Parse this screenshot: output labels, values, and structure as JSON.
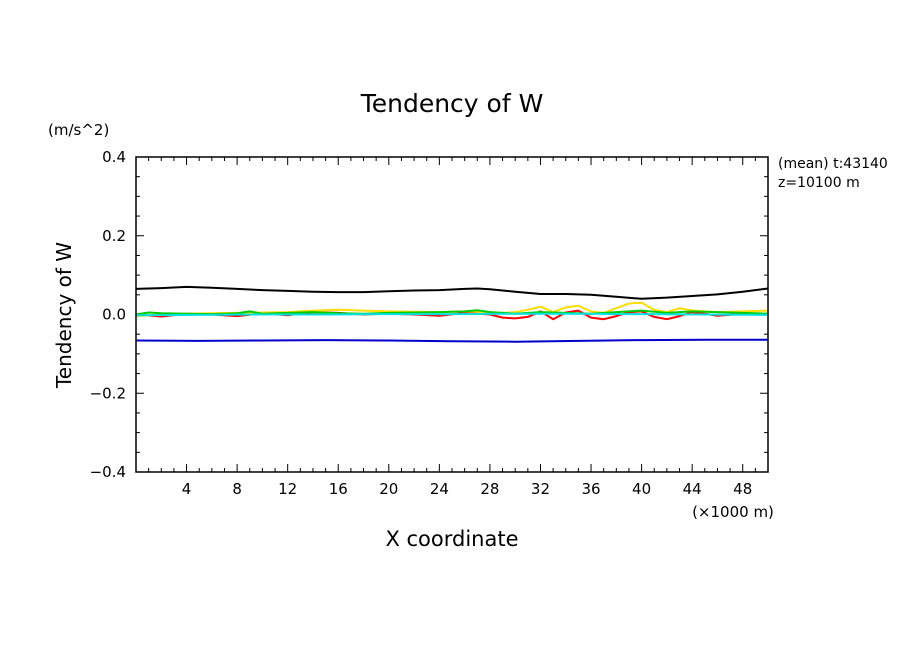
{
  "chart_data": {
    "type": "line",
    "title": "Tendency of W",
    "xlabel": "X coordinate",
    "ylabel": "Tendency of W",
    "x_unit_label": "(×1000 m)",
    "y_unit_label": "(m/s^2)",
    "annotation_lines": [
      "(mean) t:43140",
      "z=10100 m"
    ],
    "xlim": [
      0,
      50
    ],
    "ylim": [
      -0.4,
      0.4
    ],
    "xticks": [
      4,
      8,
      12,
      16,
      20,
      24,
      28,
      32,
      36,
      40,
      44,
      48
    ],
    "xtick_labels": [
      "4",
      "8",
      "12",
      "16",
      "20",
      "24",
      "28",
      "32",
      "36",
      "40",
      "44",
      "48"
    ],
    "yticks": [
      -0.4,
      -0.2,
      0.0,
      0.2,
      0.4
    ],
    "ytick_labels": [
      "−0.4",
      "−0.2",
      "0.0",
      "0.2",
      "0.4"
    ],
    "grid": false,
    "legend": "none",
    "series": [
      {
        "color": "#000000",
        "x": [
          0,
          2,
          4,
          6,
          8,
          10,
          12,
          14,
          16,
          18,
          20,
          22,
          24,
          26,
          27,
          28,
          30,
          32,
          34,
          36,
          38,
          40,
          42,
          44,
          46,
          48,
          50
        ],
        "y": [
          0.065,
          0.067,
          0.07,
          0.068,
          0.065,
          0.062,
          0.06,
          0.058,
          0.057,
          0.057,
          0.059,
          0.061,
          0.062,
          0.065,
          0.066,
          0.064,
          0.058,
          0.052,
          0.052,
          0.05,
          0.045,
          0.04,
          0.043,
          0.047,
          0.051,
          0.058,
          0.066
        ]
      },
      {
        "color": "#0000cc",
        "x": [
          0,
          5,
          10,
          15,
          20,
          25,
          30,
          35,
          40,
          45,
          50
        ],
        "y": [
          -0.066,
          -0.067,
          -0.066,
          -0.065,
          -0.066,
          -0.068,
          -0.069,
          -0.067,
          -0.065,
          -0.064,
          -0.064
        ]
      },
      {
        "color": "#ff0000",
        "x": [
          0,
          2,
          4,
          6,
          8,
          10,
          12,
          14,
          16,
          18,
          20,
          22,
          24,
          26,
          28,
          29,
          30,
          31,
          32,
          33,
          34,
          35,
          36,
          37,
          38,
          39,
          40,
          41,
          42,
          43,
          44,
          45,
          46,
          48,
          50
        ],
        "y": [
          0.0,
          -0.005,
          0.002,
          0.0,
          -0.004,
          0.003,
          -0.002,
          0.006,
          0.004,
          0.0,
          0.002,
          0.0,
          -0.003,
          0.004,
          0.0,
          -0.008,
          -0.01,
          -0.006,
          0.008,
          -0.012,
          0.005,
          0.01,
          -0.008,
          -0.012,
          -0.004,
          0.006,
          0.008,
          -0.006,
          -0.012,
          -0.004,
          0.006,
          0.002,
          -0.003,
          0.002,
          0.0
        ]
      },
      {
        "color": "#ffdd00",
        "x": [
          0,
          2,
          4,
          6,
          8,
          10,
          12,
          14,
          16,
          18,
          20,
          22,
          24,
          26,
          28,
          29,
          30,
          31,
          32,
          33,
          34,
          35,
          36,
          37,
          38,
          39,
          40,
          41,
          42,
          43,
          44,
          46,
          48,
          50
        ],
        "y": [
          -0.004,
          0.0,
          0.002,
          0.003,
          0.004,
          0.005,
          0.006,
          0.01,
          0.012,
          0.01,
          0.008,
          0.007,
          0.006,
          0.008,
          0.006,
          0.004,
          0.006,
          0.012,
          0.02,
          0.006,
          0.018,
          0.022,
          0.008,
          0.004,
          0.016,
          0.028,
          0.03,
          0.012,
          0.006,
          0.016,
          0.01,
          0.006,
          0.008,
          0.01
        ]
      },
      {
        "color": "#00cc00",
        "x": [
          0,
          1,
          2,
          4,
          6,
          8,
          9,
          10,
          12,
          14,
          16,
          18,
          20,
          22,
          24,
          26,
          27,
          28,
          30,
          32,
          34,
          36,
          38,
          40,
          42,
          44,
          46,
          48,
          50
        ],
        "y": [
          0.0,
          0.005,
          0.003,
          0.002,
          0.001,
          0.003,
          0.008,
          0.002,
          0.004,
          0.006,
          0.003,
          0.002,
          0.004,
          0.005,
          0.006,
          0.008,
          0.011,
          0.006,
          0.002,
          0.006,
          0.004,
          0.002,
          0.006,
          0.01,
          0.004,
          0.008,
          0.006,
          0.004,
          0.002
        ]
      },
      {
        "color": "#00e0e0",
        "x": [
          0,
          5,
          10,
          15,
          20,
          25,
          30,
          35,
          40,
          45,
          50
        ],
        "y": [
          -0.002,
          -0.001,
          0.0,
          0.0,
          0.001,
          0.001,
          0.002,
          0.002,
          0.001,
          0.0,
          -0.001
        ]
      }
    ]
  }
}
